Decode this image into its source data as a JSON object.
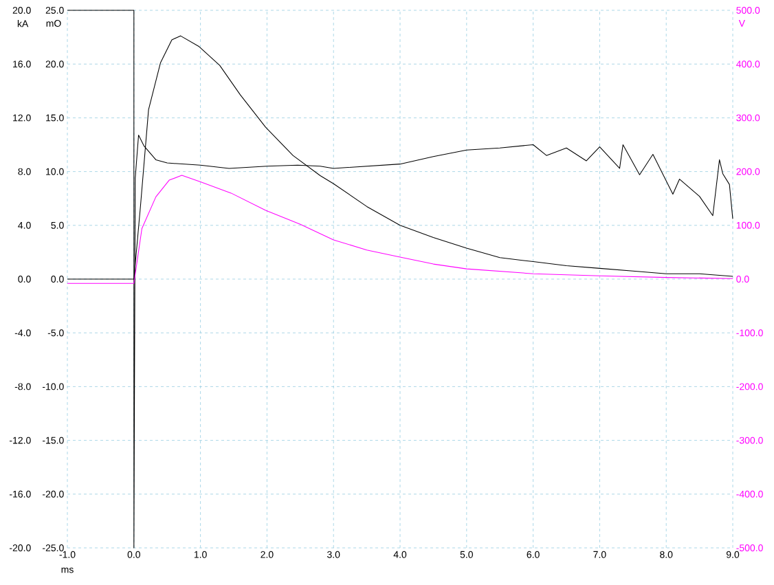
{
  "chart_data": {
    "type": "line",
    "xlabel": "ms",
    "ylabel": "kA",
    "y3label": "mO",
    "y2label": "V",
    "xlim": [
      -1,
      9
    ],
    "ylim": [
      -20,
      20
    ],
    "y3lim": [
      -25,
      25
    ],
    "y2lim": [
      -500,
      500
    ],
    "xticks": [
      {
        "value": -1,
        "label": "-1.0"
      },
      {
        "value": 0,
        "label": "0.0"
      },
      {
        "value": 1,
        "label": "1.0"
      },
      {
        "value": 2,
        "label": "2.0"
      },
      {
        "value": 3,
        "label": "3.0"
      },
      {
        "value": 4,
        "label": "4.0"
      },
      {
        "value": 5,
        "label": "5.0"
      },
      {
        "value": 6,
        "label": "6.0"
      },
      {
        "value": 7,
        "label": "7.0"
      },
      {
        "value": 8,
        "label": "8.0"
      },
      {
        "value": 9,
        "label": "9.0"
      }
    ],
    "yticks": [
      {
        "value": -20,
        "label": "-20.0"
      },
      {
        "value": -16,
        "label": "-16.0"
      },
      {
        "value": -12,
        "label": "-12.0"
      },
      {
        "value": -8,
        "label": "-8.0"
      },
      {
        "value": -4,
        "label": "-4.0"
      },
      {
        "value": 0,
        "label": "0.0"
      },
      {
        "value": 4,
        "label": "4.0"
      },
      {
        "value": 8,
        "label": "8.0"
      },
      {
        "value": 12,
        "label": "12.0"
      },
      {
        "value": 16,
        "label": "16.0"
      },
      {
        "value": 20,
        "label": "20.0"
      }
    ],
    "y3ticks": [
      {
        "value": -25,
        "label": "-25.0"
      },
      {
        "value": -20,
        "label": "-20.0"
      },
      {
        "value": -15,
        "label": "-15.0"
      },
      {
        "value": -10,
        "label": "-10.0"
      },
      {
        "value": -5,
        "label": "-5.0"
      },
      {
        "value": 0,
        "label": "0.0"
      },
      {
        "value": 5,
        "label": "5.0"
      },
      {
        "value": 10,
        "label": "10.0"
      },
      {
        "value": 15,
        "label": "15.0"
      },
      {
        "value": 20,
        "label": "20.0"
      },
      {
        "value": 25,
        "label": "25.0"
      }
    ],
    "y2ticks": [
      {
        "value": -500,
        "label": "-500.0"
      },
      {
        "value": -400,
        "label": "-400.0"
      },
      {
        "value": -300,
        "label": "-300.0"
      },
      {
        "value": -200,
        "label": "-200.0"
      },
      {
        "value": -100,
        "label": "-100.0"
      },
      {
        "value": 0,
        "label": "0.0"
      },
      {
        "value": 100,
        "label": "100.0"
      },
      {
        "value": 200,
        "label": "200.0"
      },
      {
        "value": 300,
        "label": "300.0"
      },
      {
        "value": 400,
        "label": "400.0"
      },
      {
        "value": 500,
        "label": "500.0"
      }
    ],
    "grid": true,
    "series": [
      {
        "color": "#000000",
        "x": [
          -1,
          0,
          0.1,
          0.22,
          0.4,
          0.57,
          0.7,
          0.98,
          1.29,
          1.6,
          1.98,
          2.39,
          2.8,
          3.0,
          3.5,
          4.0,
          4.5,
          5.0,
          5.5,
          6.0,
          6.5,
          7.0,
          7.5,
          8.0,
          8.5,
          9.0
        ],
        "values": [
          0,
          0,
          5.5,
          12.6,
          16.1,
          17.8,
          18.1,
          17.3,
          15.9,
          13.7,
          11.3,
          9.2,
          7.7,
          7.1,
          5.4,
          4.0,
          3.1,
          2.3,
          1.6,
          1.3,
          1.0,
          0.8,
          0.6,
          0.4,
          0.4,
          0.2
        ]
      },
      {
        "color": "#000000",
        "axis": "y3",
        "x": [
          -1,
          0,
          0,
          0.02,
          0.07,
          0.15,
          0.33,
          0.5,
          1.0,
          1.43,
          2.0,
          2.46,
          2.8,
          3.0,
          4.0,
          4.5,
          5.0,
          5.5,
          6.0,
          6.2,
          6.5,
          6.8,
          7.0,
          7.3,
          7.35,
          7.6,
          7.8,
          8.1,
          8.2,
          8.5,
          8.7,
          8.8,
          8.85,
          8.95,
          9.0
        ],
        "values": [
          25,
          25,
          -25,
          9.4,
          13.4,
          12.4,
          11.1,
          10.8,
          10.6,
          10.3,
          10.5,
          10.6,
          10.5,
          10.3,
          10.7,
          11.4,
          12.0,
          12.2,
          12.5,
          11.5,
          12.2,
          11.0,
          12.3,
          10.3,
          12.5,
          9.7,
          11.6,
          7.9,
          9.3,
          7.7,
          5.9,
          11.1,
          9.8,
          8.8,
          5.6
        ]
      },
      {
        "color": "#ff00ff",
        "axis": "y2",
        "x": [
          -1,
          0,
          0.02,
          0.12,
          0.33,
          0.53,
          0.72,
          1.0,
          1.46,
          1.98,
          2.5,
          3.0,
          3.5,
          4.0,
          4.5,
          5.0,
          6.0,
          7.0,
          8.0,
          9.0
        ],
        "values": [
          -8,
          -8,
          9,
          94,
          153,
          184,
          193,
          181,
          160,
          128,
          102,
          73,
          54,
          41,
          28,
          19,
          10,
          6,
          3,
          1
        ]
      }
    ]
  }
}
